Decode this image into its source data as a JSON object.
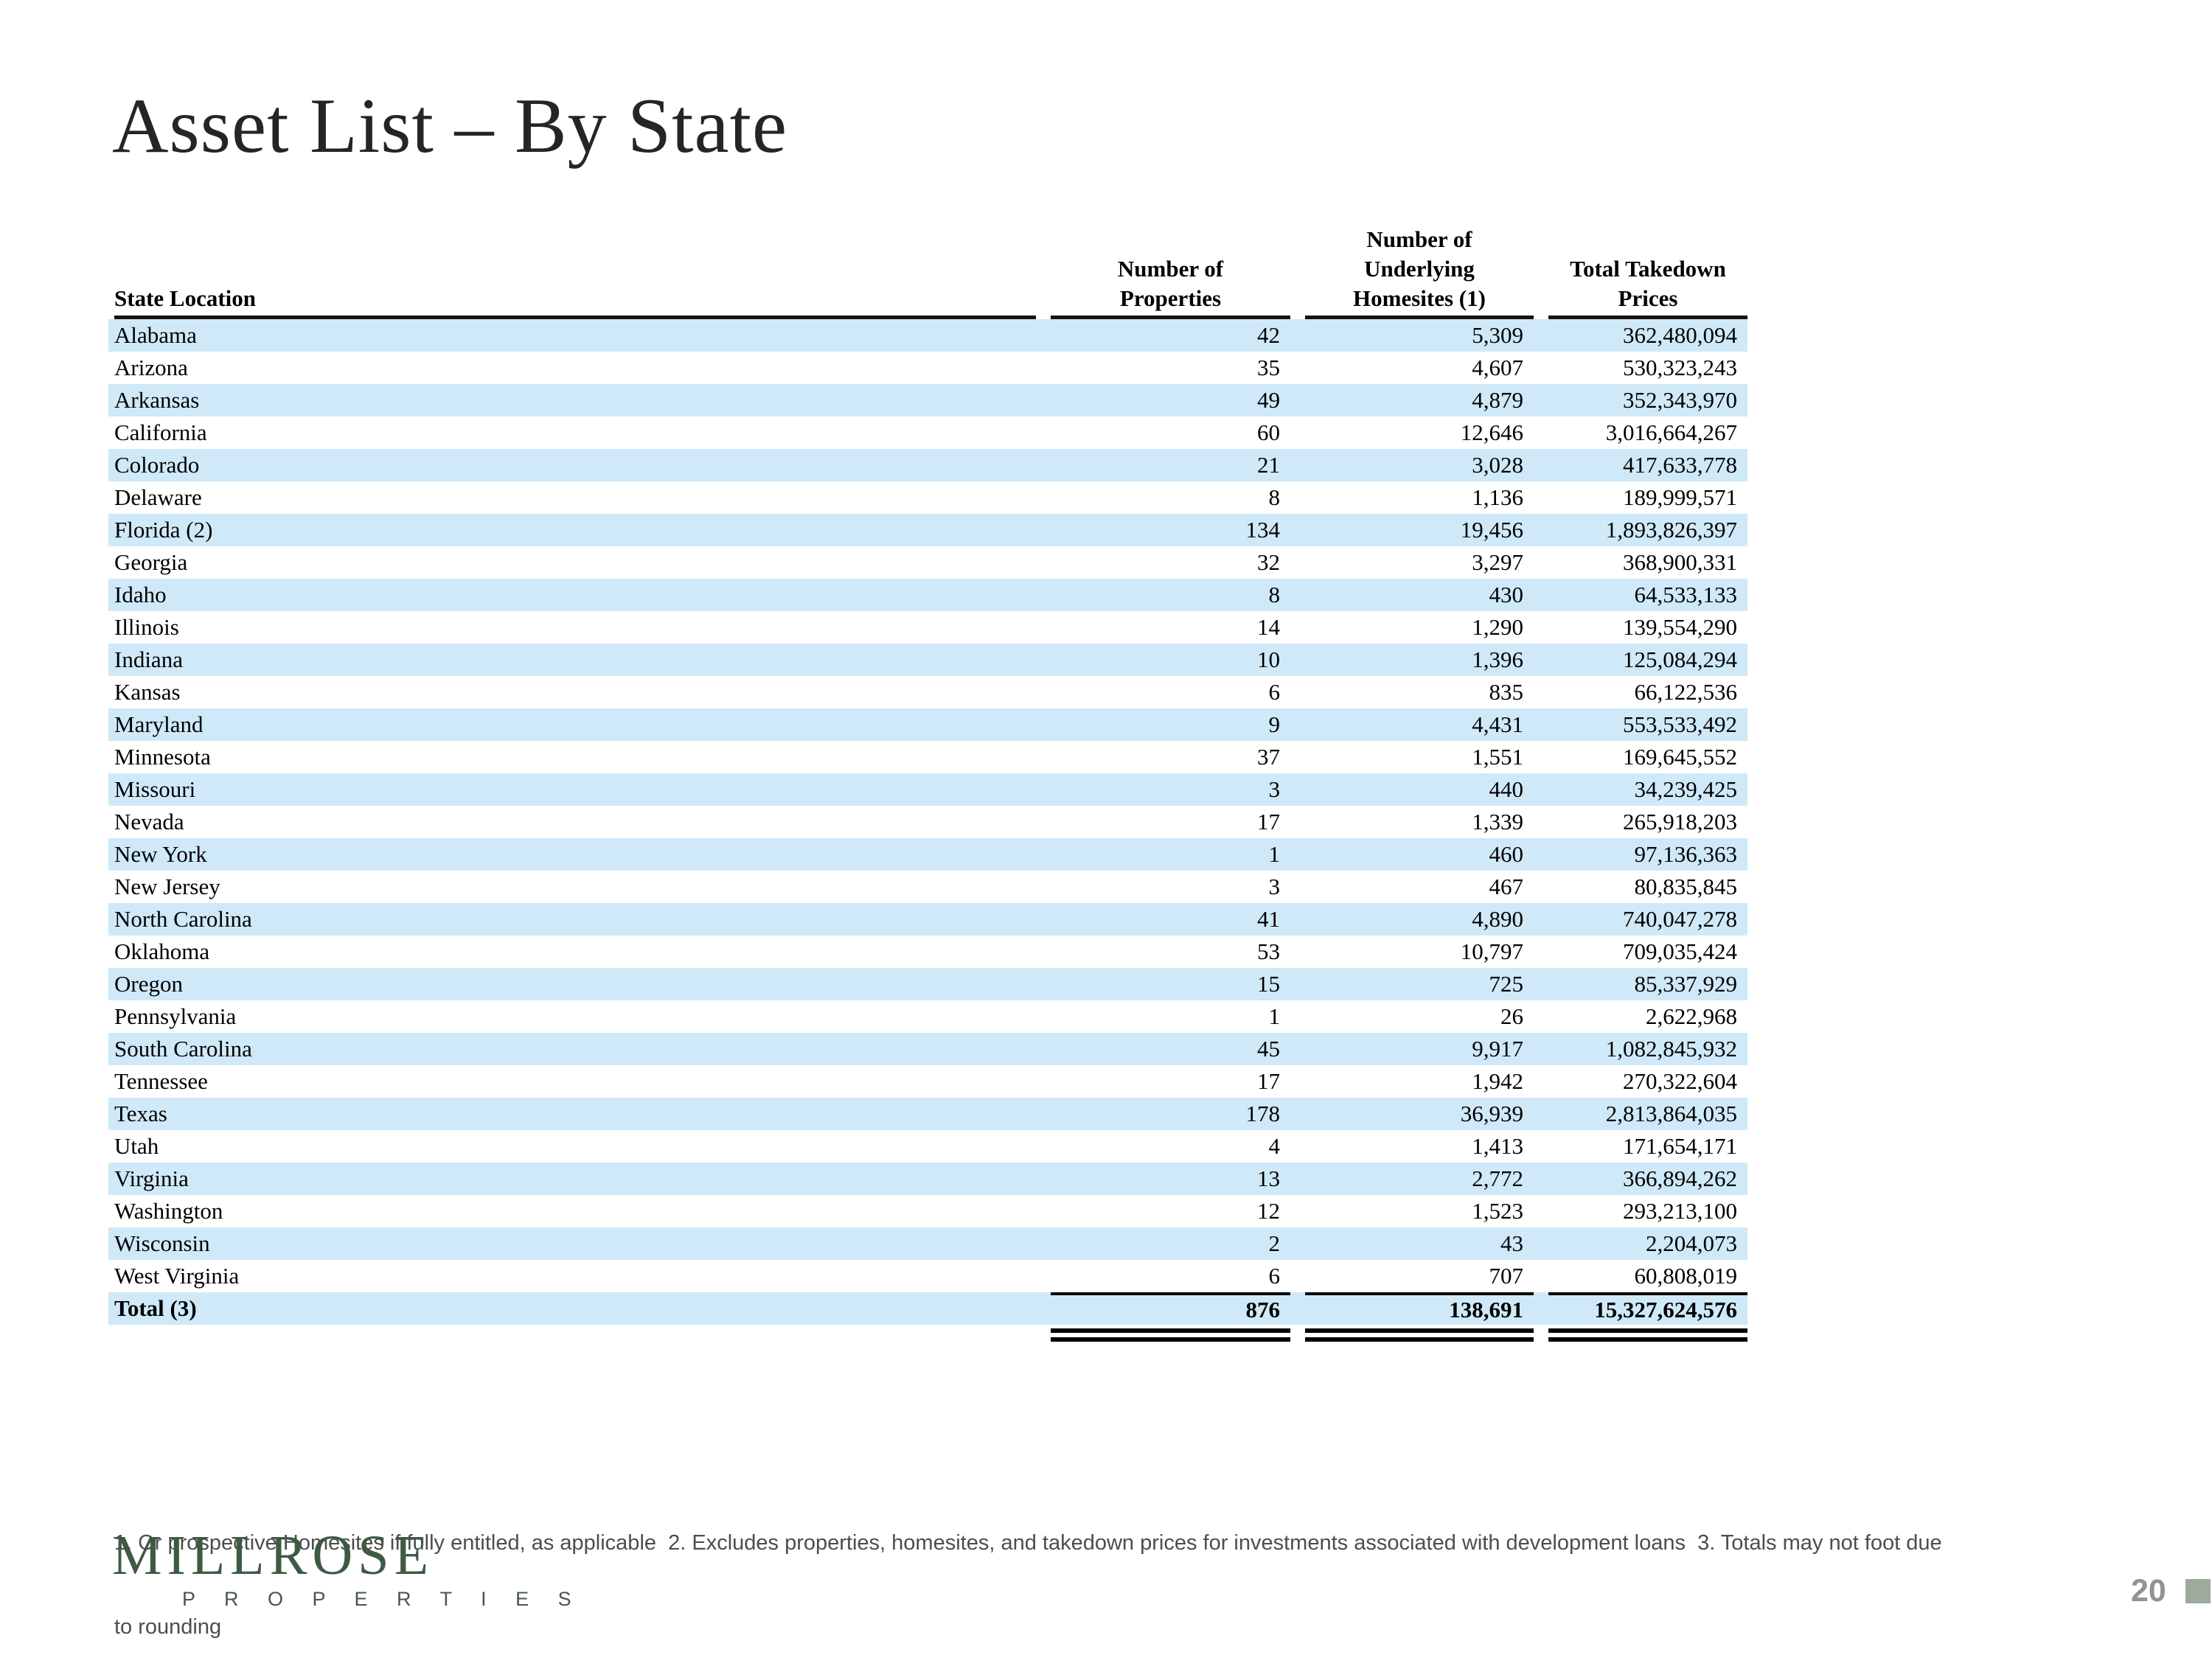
{
  "page": {
    "title": "Asset List – By State",
    "page_number": "20"
  },
  "colors": {
    "row_shade": "#cfe9f8",
    "logo_green": "#3e5a43",
    "page_number_gray": "#8e9394",
    "corner_square": "#9dab9f"
  },
  "table": {
    "headers": {
      "state": "State Location",
      "properties": "Number of\nProperties",
      "homesites": "Number of\nUnderlying\nHomesites (1)",
      "prices": "Total Takedown\nPrices"
    },
    "rows": [
      {
        "state": "Alabama",
        "properties": "42",
        "homesites": "5,309",
        "prices": "362,480,094"
      },
      {
        "state": "Arizona",
        "properties": "35",
        "homesites": "4,607",
        "prices": "530,323,243"
      },
      {
        "state": "Arkansas",
        "properties": "49",
        "homesites": "4,879",
        "prices": "352,343,970"
      },
      {
        "state": "California",
        "properties": "60",
        "homesites": "12,646",
        "prices": "3,016,664,267"
      },
      {
        "state": "Colorado",
        "properties": "21",
        "homesites": "3,028",
        "prices": "417,633,778"
      },
      {
        "state": "Delaware",
        "properties": "8",
        "homesites": "1,136",
        "prices": "189,999,571"
      },
      {
        "state": "Florida (2)",
        "properties": "134",
        "homesites": "19,456",
        "prices": "1,893,826,397"
      },
      {
        "state": "Georgia",
        "properties": "32",
        "homesites": "3,297",
        "prices": "368,900,331"
      },
      {
        "state": "Idaho",
        "properties": "8",
        "homesites": "430",
        "prices": "64,533,133"
      },
      {
        "state": "Illinois",
        "properties": "14",
        "homesites": "1,290",
        "prices": "139,554,290"
      },
      {
        "state": "Indiana",
        "properties": "10",
        "homesites": "1,396",
        "prices": "125,084,294"
      },
      {
        "state": "Kansas",
        "properties": "6",
        "homesites": "835",
        "prices": "66,122,536"
      },
      {
        "state": "Maryland",
        "properties": "9",
        "homesites": "4,431",
        "prices": "553,533,492"
      },
      {
        "state": "Minnesota",
        "properties": "37",
        "homesites": "1,551",
        "prices": "169,645,552"
      },
      {
        "state": "Missouri",
        "properties": "3",
        "homesites": "440",
        "prices": "34,239,425"
      },
      {
        "state": "Nevada",
        "properties": "17",
        "homesites": "1,339",
        "prices": "265,918,203"
      },
      {
        "state": "New York",
        "properties": "1",
        "homesites": "460",
        "prices": "97,136,363"
      },
      {
        "state": "New Jersey",
        "properties": "3",
        "homesites": "467",
        "prices": "80,835,845"
      },
      {
        "state": "North Carolina",
        "properties": "41",
        "homesites": "4,890",
        "prices": "740,047,278"
      },
      {
        "state": "Oklahoma",
        "properties": "53",
        "homesites": "10,797",
        "prices": "709,035,424"
      },
      {
        "state": "Oregon",
        "properties": "15",
        "homesites": "725",
        "prices": "85,337,929"
      },
      {
        "state": "Pennsylvania",
        "properties": "1",
        "homesites": "26",
        "prices": "2,622,968"
      },
      {
        "state": "South Carolina",
        "properties": "45",
        "homesites": "9,917",
        "prices": "1,082,845,932"
      },
      {
        "state": "Tennessee",
        "properties": "17",
        "homesites": "1,942",
        "prices": "270,322,604"
      },
      {
        "state": "Texas",
        "properties": "178",
        "homesites": "36,939",
        "prices": "2,813,864,035"
      },
      {
        "state": "Utah",
        "properties": "4",
        "homesites": "1,413",
        "prices": "171,654,171"
      },
      {
        "state": "Virginia",
        "properties": "13",
        "homesites": "2,772",
        "prices": "366,894,262"
      },
      {
        "state": "Washington",
        "properties": "12",
        "homesites": "1,523",
        "prices": "293,213,100"
      },
      {
        "state": "Wisconsin",
        "properties": "2",
        "homesites": "43",
        "prices": "2,204,073"
      },
      {
        "state": "West Virginia",
        "properties": "6",
        "homesites": "707",
        "prices": "60,808,019"
      }
    ],
    "total": {
      "state": "Total (3)",
      "properties": "876",
      "homesites": "138,691",
      "prices": "15,327,624,576"
    }
  },
  "footnotes": {
    "line1": "1. Or prospective Homesites if fully entitled, as applicable  2. Excludes properties, homesites, and takedown prices for investments associated with development loans  3. Totals may not foot due",
    "line2": "to rounding"
  },
  "logo": {
    "name": "MILLROSE",
    "subtitle": "P R O P E R T I E S"
  }
}
